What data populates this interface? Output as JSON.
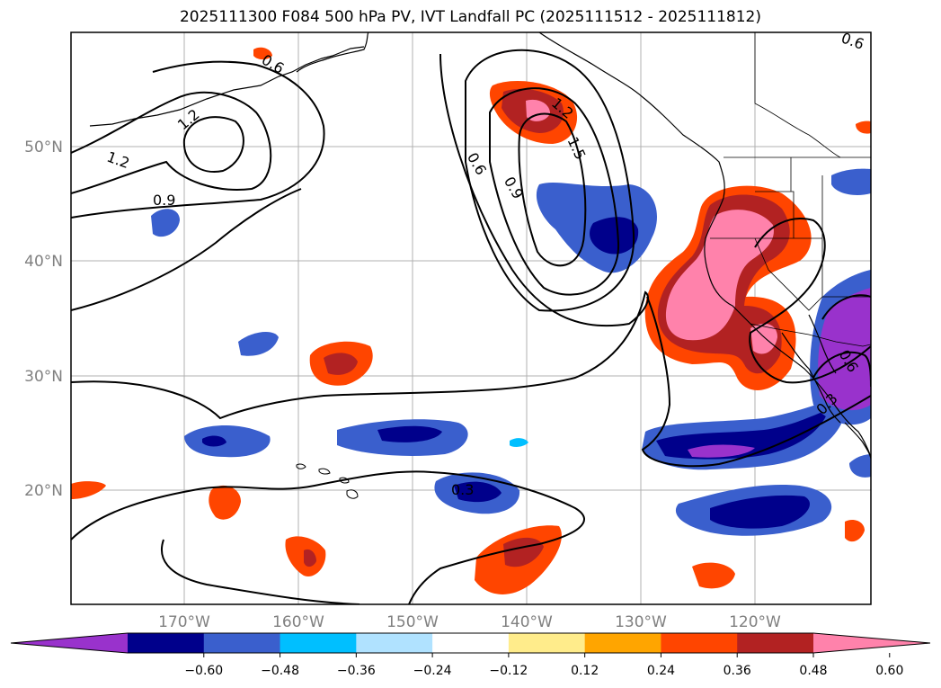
{
  "title": "2025111300 F084 500 hPa PV, IVT Landfall PC (2025111512 - 2025111812)",
  "map": {
    "lat_ticks": [
      "50°N",
      "40°N",
      "30°N",
      "20°N"
    ],
    "lon_ticks": [
      "170°W",
      "160°W",
      "150°W",
      "140°W",
      "130°W",
      "120°W"
    ],
    "contour_labels": [
      "0.6",
      "1.2",
      "1.2",
      "0.9",
      "0.6",
      "0.9",
      "1.2",
      "1.5",
      "0.6",
      "0.3",
      "0.3",
      "0.6"
    ]
  },
  "colorbar": {
    "ticks": [
      "−0.60",
      "−0.48",
      "−0.36",
      "−0.24",
      "−0.12",
      "0.12",
      "0.24",
      "0.36",
      "0.48",
      "0.60"
    ],
    "colors": [
      "#9932cc",
      "#00008b",
      "#3a5fcd",
      "#00bfff",
      "#b0e2ff",
      "#ffffff",
      "#ffec8b",
      "#ffa500",
      "#ff4500",
      "#b22222",
      "#ff82ab"
    ]
  }
}
